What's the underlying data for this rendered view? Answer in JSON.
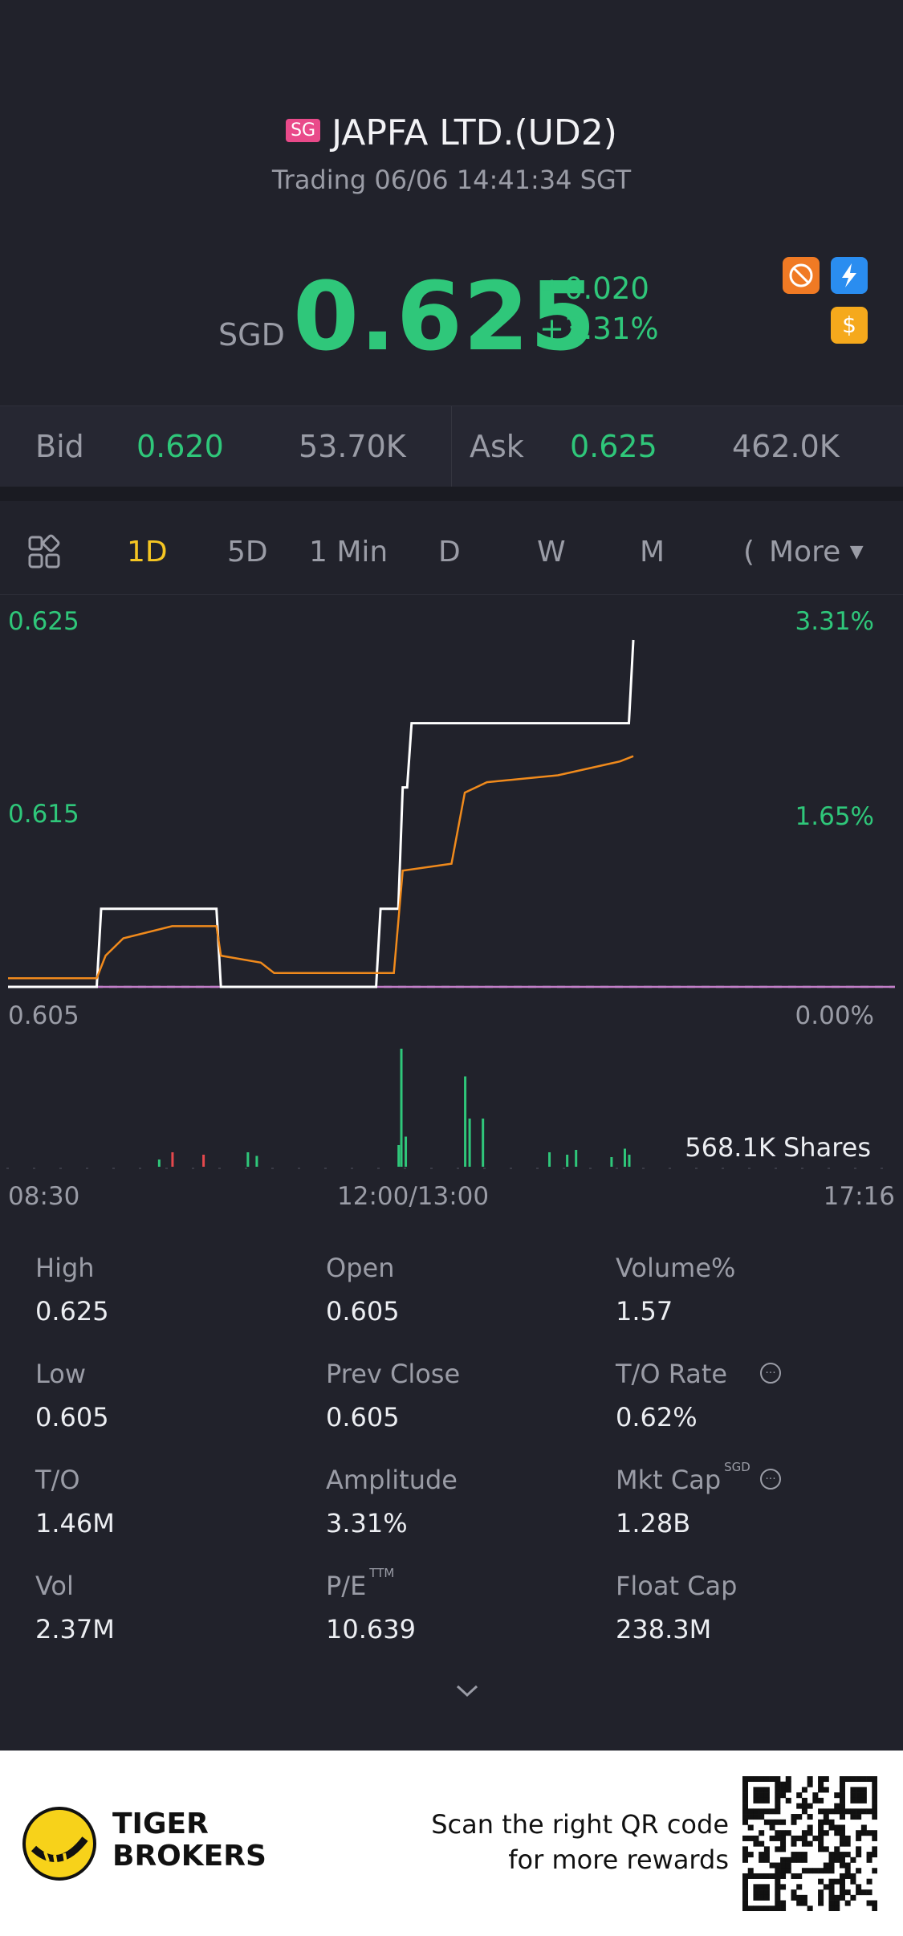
{
  "header": {
    "market_badge": "SG",
    "title": "JAPFA LTD.(UD2)",
    "status": "Trading 06/06 14:41:34 SGT",
    "currency": "SGD",
    "price": "0.625",
    "change": "+0.020",
    "change_pct": "+3.31%",
    "icons": [
      "no-short-icon",
      "lightning-icon",
      "dollar-icon"
    ]
  },
  "quote": {
    "bid_label": "Bid",
    "bid_price": "0.620",
    "bid_size": "53.70K",
    "ask_label": "Ask",
    "ask_price": "0.625",
    "ask_size": "462.0K"
  },
  "tabs": [
    "1D",
    "5D",
    "1 Min",
    "D",
    "W",
    "M",
    "(",
    "More"
  ],
  "active_tab": "1D",
  "chart_data": {
    "type": "line",
    "title": "",
    "x_ticks": [
      "08:30",
      "12:00/13:00",
      "17:16"
    ],
    "y_left_ticks": [
      "0.625",
      "0.615",
      "0.605"
    ],
    "y_right_ticks": [
      "3.31%",
      "1.65%",
      "0.00%"
    ],
    "ylim": [
      0.605,
      0.625
    ],
    "prev_close": 0.605,
    "volume_label": "568.1K Shares",
    "series": [
      {
        "name": "Price",
        "color": "#ffffff",
        "points": [
          [
            0,
            0.605
          ],
          [
            0.1,
            0.605
          ],
          [
            0.105,
            0.6095
          ],
          [
            0.235,
            0.6095
          ],
          [
            0.24,
            0.605
          ],
          [
            0.415,
            0.605
          ],
          [
            0.42,
            0.6095
          ],
          [
            0.44,
            0.6095
          ],
          [
            0.445,
            0.6165
          ],
          [
            0.45,
            0.6165
          ],
          [
            0.455,
            0.6202
          ],
          [
            0.7,
            0.6202
          ],
          [
            0.705,
            0.625
          ]
        ]
      },
      {
        "name": "Avg Price",
        "color": "#f08a1c",
        "points": [
          [
            0,
            0.6055
          ],
          [
            0.1,
            0.6055
          ],
          [
            0.11,
            0.6068
          ],
          [
            0.13,
            0.6078
          ],
          [
            0.185,
            0.6085
          ],
          [
            0.235,
            0.6085
          ],
          [
            0.24,
            0.6068
          ],
          [
            0.285,
            0.6064
          ],
          [
            0.3,
            0.6058
          ],
          [
            0.435,
            0.6058
          ],
          [
            0.445,
            0.6117
          ],
          [
            0.5,
            0.6121
          ],
          [
            0.515,
            0.6162
          ],
          [
            0.54,
            0.6168
          ],
          [
            0.62,
            0.6172
          ],
          [
            0.69,
            0.618
          ],
          [
            0.705,
            0.6183
          ]
        ]
      }
    ],
    "volume": [
      {
        "x": 0.185,
        "v": 0.12,
        "c": "#e5484d"
      },
      {
        "x": 0.22,
        "v": 0.1,
        "c": "#e5484d"
      },
      {
        "x": 0.17,
        "v": 0.06,
        "c": "#2fc77a"
      },
      {
        "x": 0.27,
        "v": 0.12,
        "c": "#2fc77a"
      },
      {
        "x": 0.28,
        "v": 0.09,
        "c": "#2fc77a"
      },
      {
        "x": 0.44,
        "v": 0.18,
        "c": "#2fc77a"
      },
      {
        "x": 0.443,
        "v": 0.98,
        "c": "#2fc77a"
      },
      {
        "x": 0.448,
        "v": 0.25,
        "c": "#2fc77a"
      },
      {
        "x": 0.515,
        "v": 0.75,
        "c": "#2fc77a"
      },
      {
        "x": 0.52,
        "v": 0.4,
        "c": "#2fc77a"
      },
      {
        "x": 0.535,
        "v": 0.4,
        "c": "#2fc77a"
      },
      {
        "x": 0.61,
        "v": 0.12,
        "c": "#2fc77a"
      },
      {
        "x": 0.63,
        "v": 0.1,
        "c": "#2fc77a"
      },
      {
        "x": 0.64,
        "v": 0.14,
        "c": "#2fc77a"
      },
      {
        "x": 0.68,
        "v": 0.08,
        "c": "#2fc77a"
      },
      {
        "x": 0.695,
        "v": 0.15,
        "c": "#2fc77a"
      },
      {
        "x": 0.7,
        "v": 0.1,
        "c": "#2fc77a"
      }
    ]
  },
  "stats": [
    {
      "label": "High",
      "value": "0.625",
      "sup": "",
      "info": false
    },
    {
      "label": "Open",
      "value": "0.605",
      "sup": "",
      "info": false
    },
    {
      "label": "Volume%",
      "value": "1.57",
      "sup": "",
      "info": false
    },
    {
      "label": "Low",
      "value": "0.605",
      "sup": "",
      "info": false
    },
    {
      "label": "Prev Close",
      "value": "0.605",
      "sup": "",
      "info": false
    },
    {
      "label": "T/O Rate",
      "value": "0.62%",
      "sup": "",
      "info": true
    },
    {
      "label": "T/O",
      "value": "1.46M",
      "sup": "",
      "info": false
    },
    {
      "label": "Amplitude",
      "value": "3.31%",
      "sup": "",
      "info": false
    },
    {
      "label": "Mkt Cap",
      "value": "1.28B",
      "sup": "SGD",
      "info": true
    },
    {
      "label": "Vol",
      "value": "2.37M",
      "sup": "",
      "info": false
    },
    {
      "label": "P/E",
      "value": "10.639",
      "sup": "TTM",
      "info": false
    },
    {
      "label": "Float Cap",
      "value": "238.3M",
      "sup": "",
      "info": false
    }
  ],
  "footer": {
    "brand_line1": "TIGER",
    "brand_line2": "BROKERS",
    "scan_line1": "Scan the right QR code",
    "scan_line2": "for more rewards"
  },
  "colors": {
    "up": "#2fc77a",
    "down": "#e5484d",
    "accent": "#f5c623",
    "avg": "#f08a1c"
  }
}
